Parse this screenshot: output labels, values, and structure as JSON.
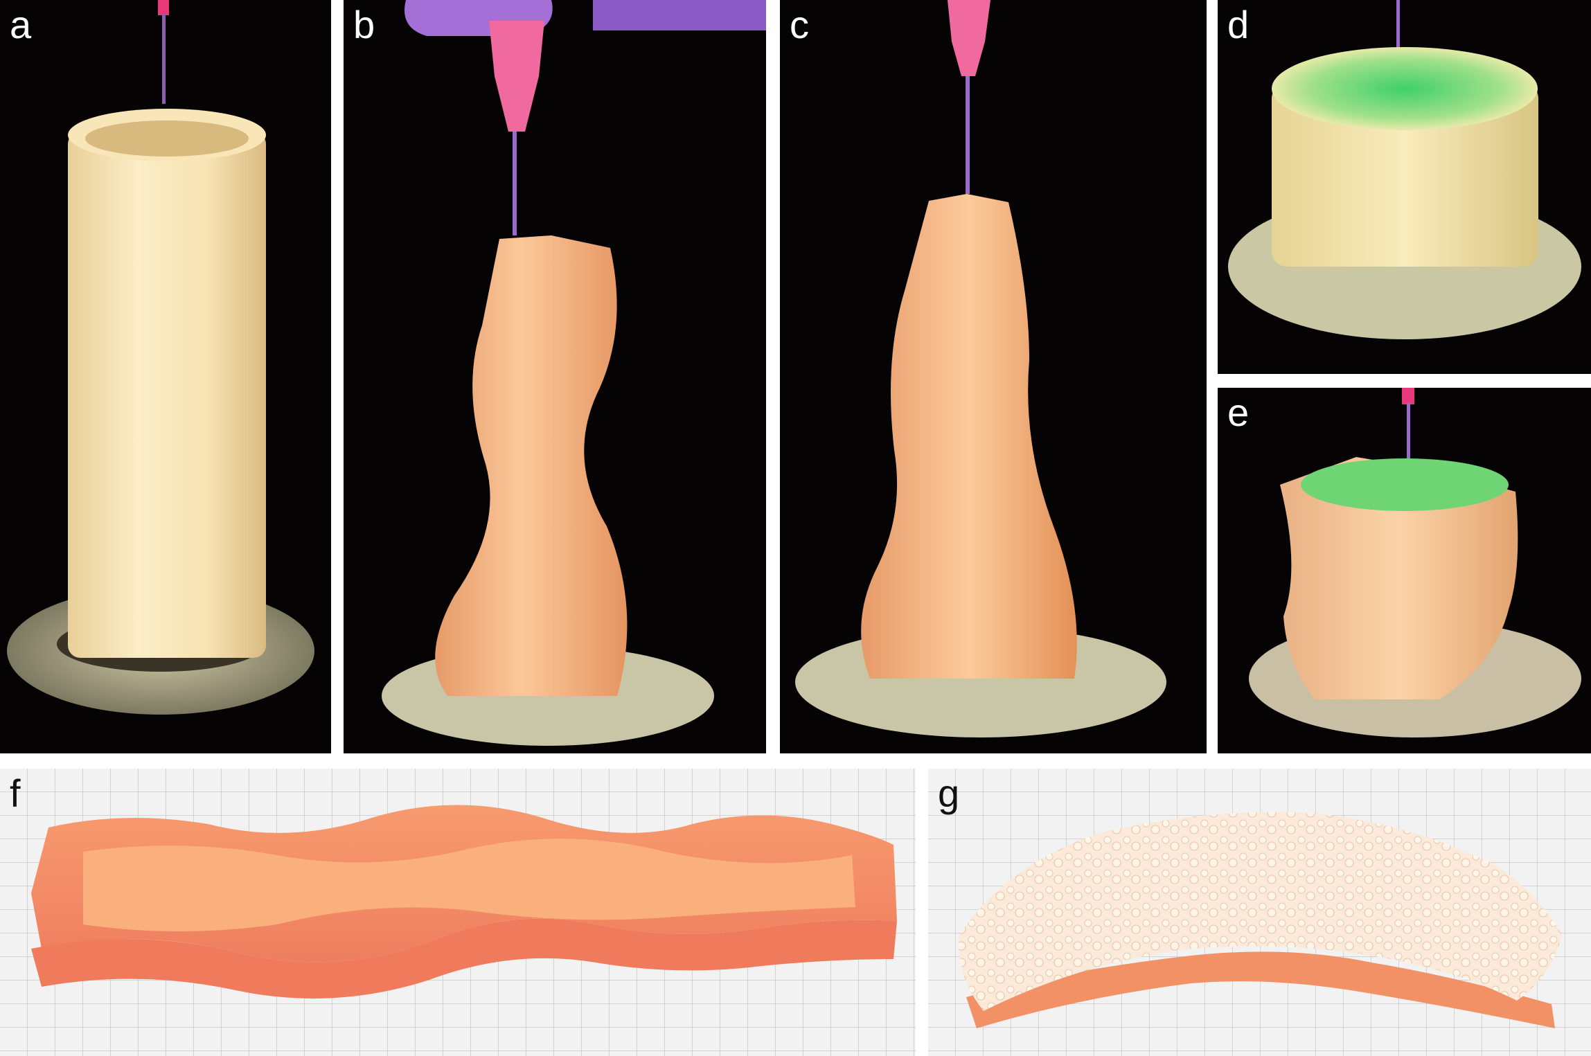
{
  "panels": [
    {
      "id": "a",
      "label": "a"
    },
    {
      "id": "b",
      "label": "b"
    },
    {
      "id": "c",
      "label": "c"
    },
    {
      "id": "d",
      "label": "d"
    },
    {
      "id": "e",
      "label": "e"
    },
    {
      "id": "f",
      "label": "f"
    },
    {
      "id": "g",
      "label": "g"
    }
  ],
  "colors": {
    "background_dark": "#050304",
    "print_cream": "#f6e2b6",
    "print_peach": "#f7b98c",
    "print_orange": "#f58a6a",
    "needle_pink": "#e8387a",
    "uv_glow_green": "#3fd06a",
    "grid_paper": "#eeeeee",
    "foam_white": "#fbeee2"
  }
}
